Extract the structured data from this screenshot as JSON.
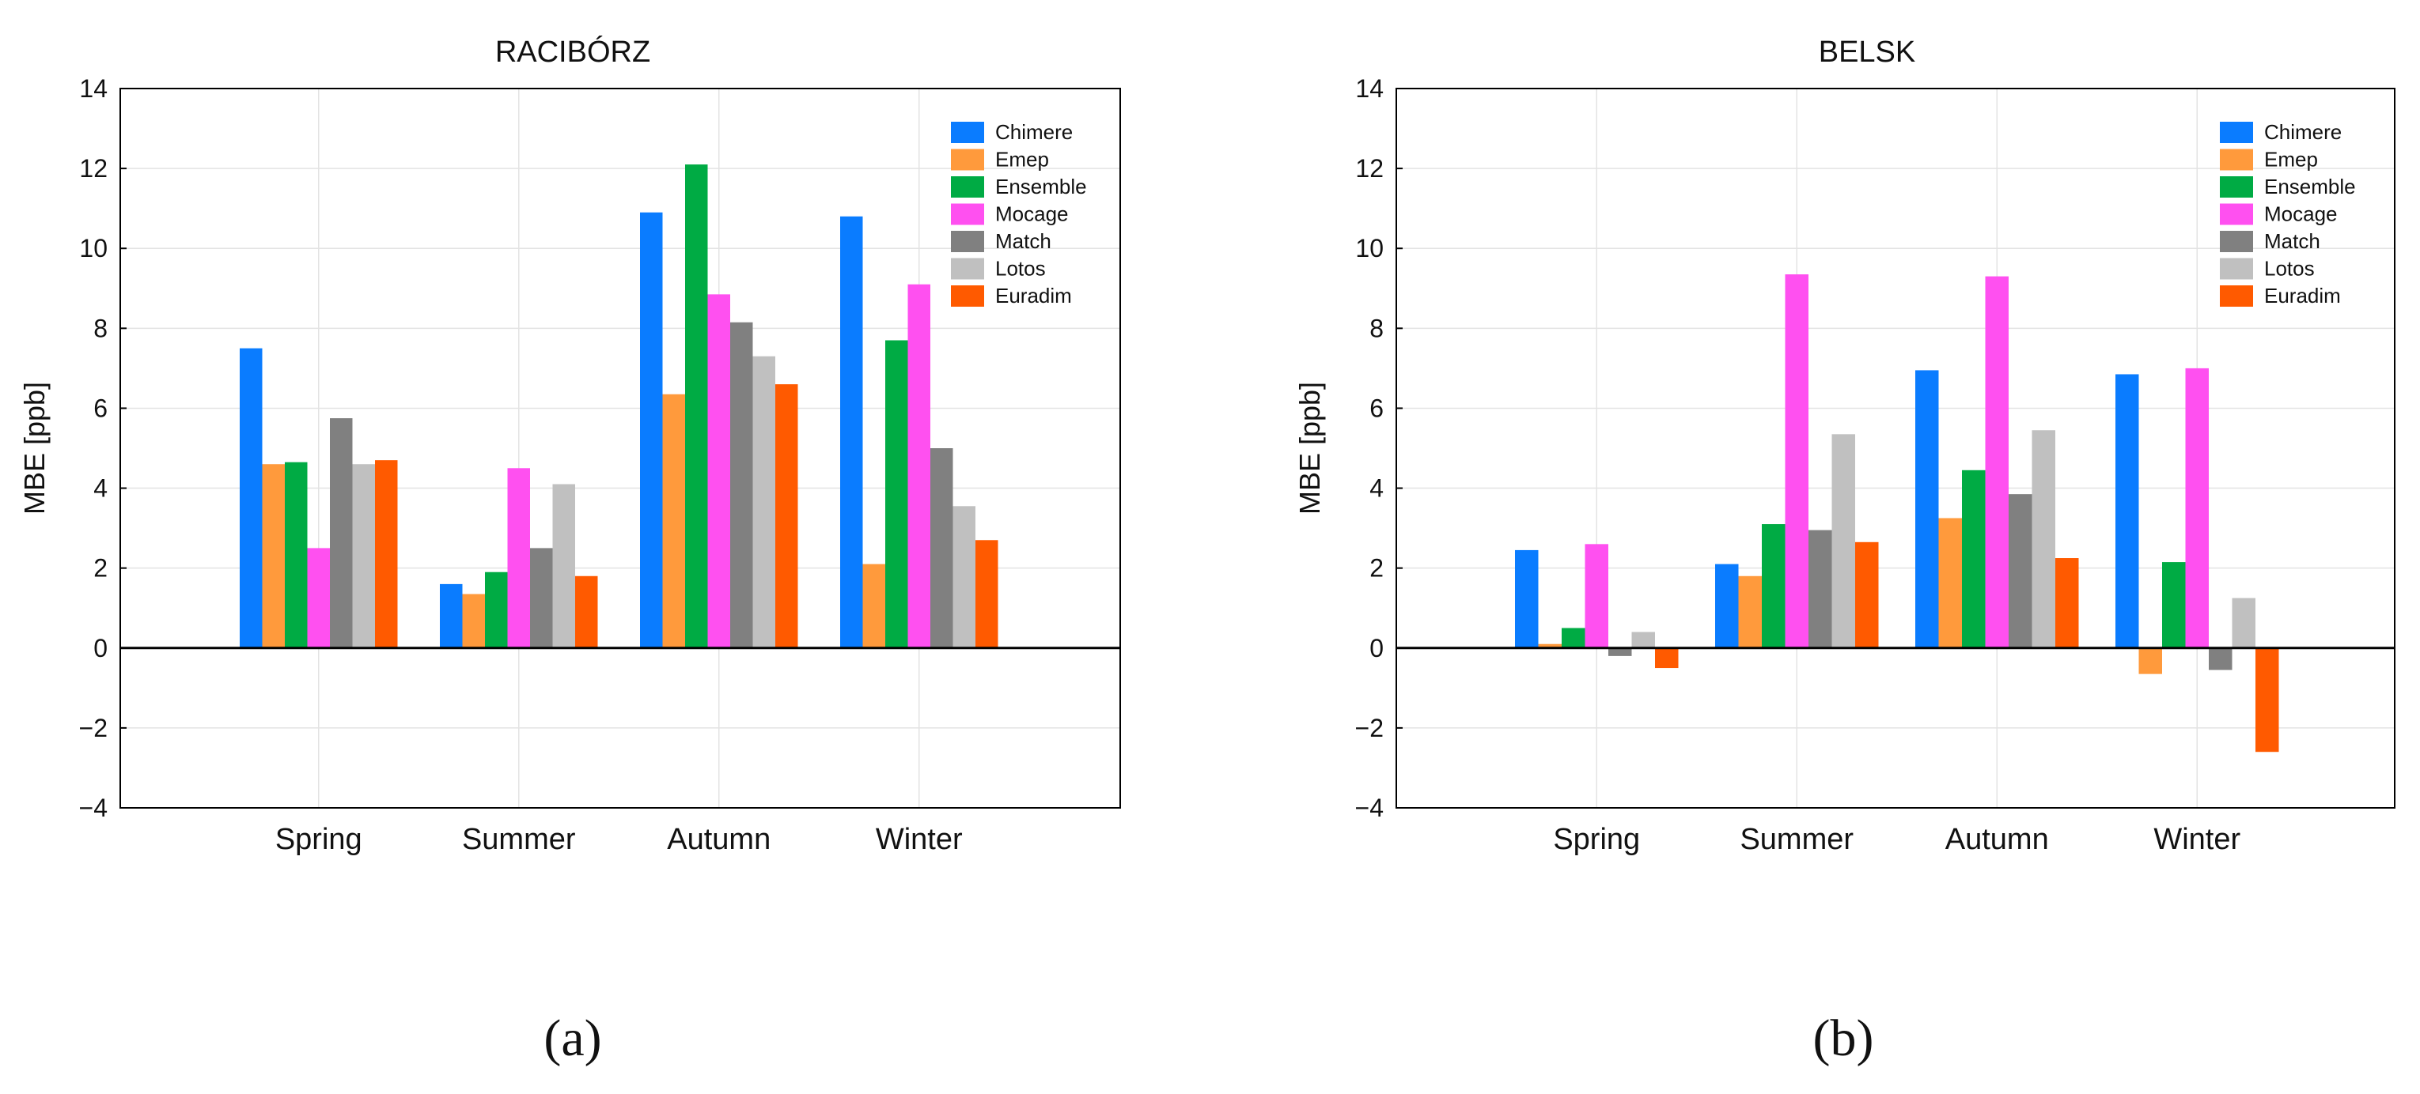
{
  "chart_data": [
    {
      "type": "bar",
      "title": "RACIBÓRZ",
      "ylabel": "MBE [ppb]",
      "xlabel": "",
      "ylim": [
        -4,
        14
      ],
      "yticks": [
        -4,
        -2,
        0,
        2,
        4,
        6,
        8,
        10,
        12,
        14
      ],
      "grid": true,
      "legend": "top-right",
      "categories": [
        "Spring",
        "Summer",
        "Autumn",
        "Winter"
      ],
      "series": [
        {
          "name": "Chimere",
          "color": "#0a7cff",
          "values": [
            7.5,
            1.6,
            10.9,
            10.8
          ]
        },
        {
          "name": "Emep",
          "color": "#ff9a3c",
          "values": [
            4.6,
            1.35,
            6.35,
            2.1
          ]
        },
        {
          "name": "Ensemble",
          "color": "#00ab44",
          "values": [
            4.65,
            1.9,
            12.1,
            7.7
          ]
        },
        {
          "name": "Mocage",
          "color": "#ff50f0",
          "values": [
            2.5,
            4.5,
            8.85,
            9.1
          ]
        },
        {
          "name": "Match",
          "color": "#808080",
          "values": [
            5.75,
            2.5,
            8.15,
            5.0
          ]
        },
        {
          "name": "Lotos",
          "color": "#c0c0c0",
          "values": [
            4.6,
            4.1,
            7.3,
            3.55
          ]
        },
        {
          "name": "Euradim",
          "color": "#ff5a00",
          "values": [
            4.7,
            1.8,
            6.6,
            2.7
          ]
        }
      ],
      "caption": "(a)"
    },
    {
      "type": "bar",
      "title": "BELSK",
      "ylabel": "MBE [ppb]",
      "xlabel": "",
      "ylim": [
        -4,
        14
      ],
      "yticks": [
        -4,
        -2,
        0,
        2,
        4,
        6,
        8,
        10,
        12,
        14
      ],
      "grid": true,
      "legend": "top-right",
      "categories": [
        "Spring",
        "Summer",
        "Autumn",
        "Winter"
      ],
      "series": [
        {
          "name": "Chimere",
          "color": "#0a7cff",
          "values": [
            2.45,
            2.1,
            6.95,
            6.85
          ]
        },
        {
          "name": "Emep",
          "color": "#ff9a3c",
          "values": [
            0.1,
            1.8,
            3.25,
            -0.65
          ]
        },
        {
          "name": "Ensemble",
          "color": "#00ab44",
          "values": [
            0.5,
            3.1,
            4.45,
            2.15
          ]
        },
        {
          "name": "Mocage",
          "color": "#ff50f0",
          "values": [
            2.6,
            9.35,
            9.3,
            7.0
          ]
        },
        {
          "name": "Match",
          "color": "#808080",
          "values": [
            -0.2,
            2.95,
            3.85,
            -0.55
          ]
        },
        {
          "name": "Lotos",
          "color": "#c0c0c0",
          "values": [
            0.4,
            5.35,
            5.45,
            1.25
          ]
        },
        {
          "name": "Euradim",
          "color": "#ff5a00",
          "values": [
            -0.5,
            2.65,
            2.25,
            -2.6
          ]
        }
      ],
      "caption": "(b)"
    }
  ]
}
